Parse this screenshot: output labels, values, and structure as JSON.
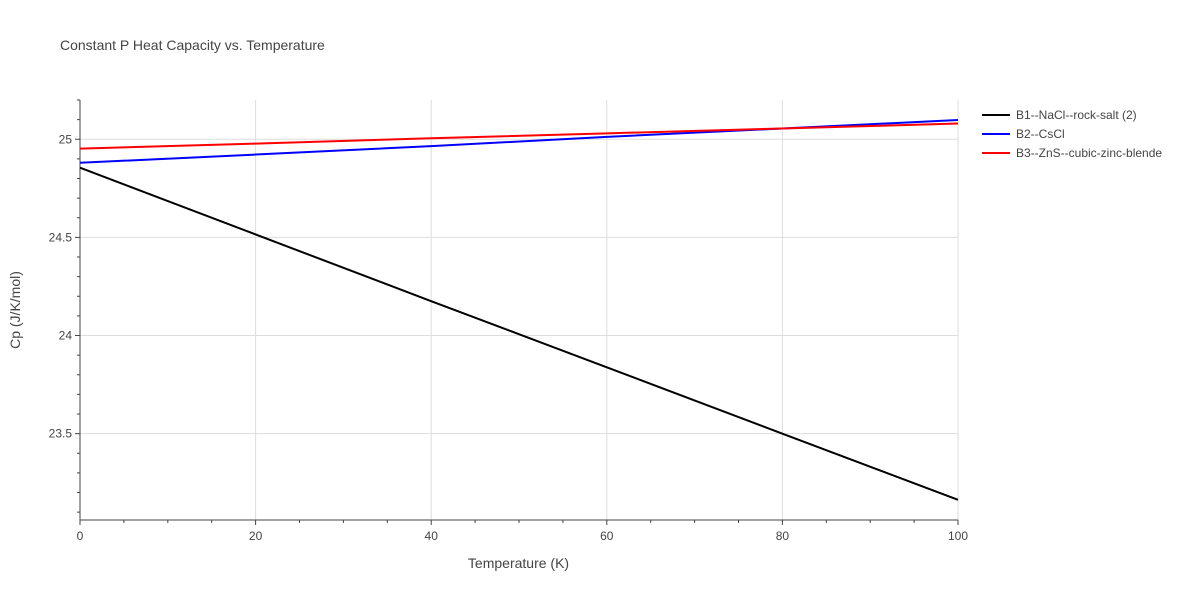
{
  "chart_data": {
    "type": "line",
    "title": "Constant P Heat Capacity vs. Temperature",
    "xlabel": "Temperature (K)",
    "ylabel": "Cp (J/K/mol)",
    "xlim": [
      0,
      100
    ],
    "ylim": [
      23.06,
      25.2
    ],
    "xticks": [
      0,
      20,
      40,
      60,
      80,
      100
    ],
    "xtick_labels": [
      "0",
      "20",
      "40",
      "60",
      "80",
      "100"
    ],
    "yticks": [
      23.5,
      24,
      24.5,
      25
    ],
    "ytick_labels": [
      "23.5",
      "24",
      "24.5",
      "25"
    ],
    "grid": true,
    "legend_position": "top-right",
    "series": [
      {
        "name": "B1--NaCl--rock-salt (2)",
        "color": "#000000",
        "x": [
          0,
          20,
          40,
          60,
          80,
          100
        ],
        "y": [
          24.855,
          24.515,
          24.175,
          23.838,
          23.5,
          23.163
        ]
      },
      {
        "name": "B2--CsCl",
        "color": "#0000ff",
        "x": [
          0,
          20,
          40,
          60,
          80,
          100
        ],
        "y": [
          24.88,
          24.922,
          24.965,
          25.012,
          25.055,
          25.098
        ]
      },
      {
        "name": "B3--ZnS--cubic-zinc-blende",
        "color": "#ff0000",
        "x": [
          0,
          20,
          40,
          60,
          80,
          100
        ],
        "y": [
          24.952,
          24.978,
          25.005,
          25.03,
          25.055,
          25.08
        ]
      }
    ]
  }
}
